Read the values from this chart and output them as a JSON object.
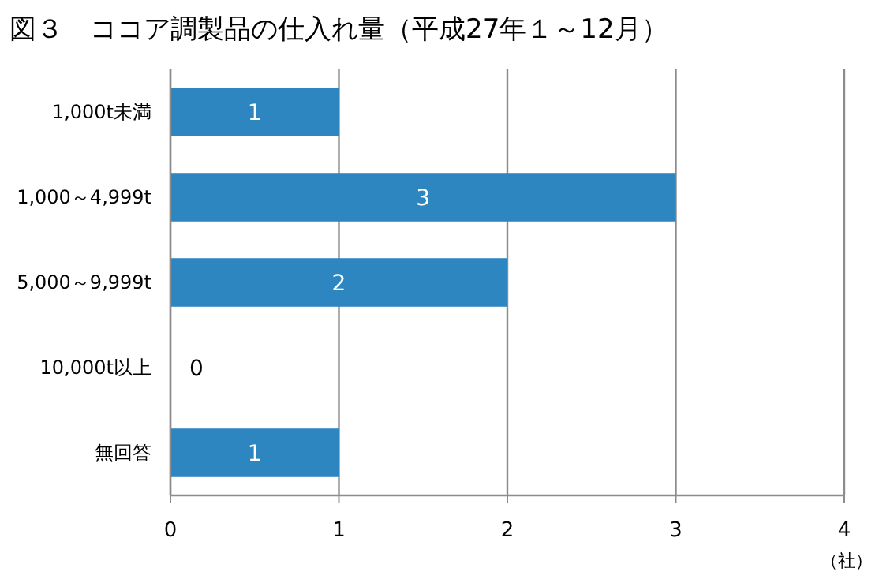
{
  "chart_data": {
    "type": "bar",
    "orientation": "horizontal",
    "title": "図３　ココア調製品の仕入れ量（平成27年１～12月）",
    "xlabel": "（社）",
    "categories": [
      "1,000t未満",
      "1,000～4,999t",
      "5,000～9,999t",
      "10,000t以上",
      "無回答"
    ],
    "values": [
      1,
      3,
      2,
      0,
      1
    ],
    "color": "#2e86c1",
    "xlim": [
      0,
      4
    ],
    "xticks": [
      0,
      1,
      2,
      3,
      4
    ],
    "grid": "x",
    "data_labels": true
  }
}
